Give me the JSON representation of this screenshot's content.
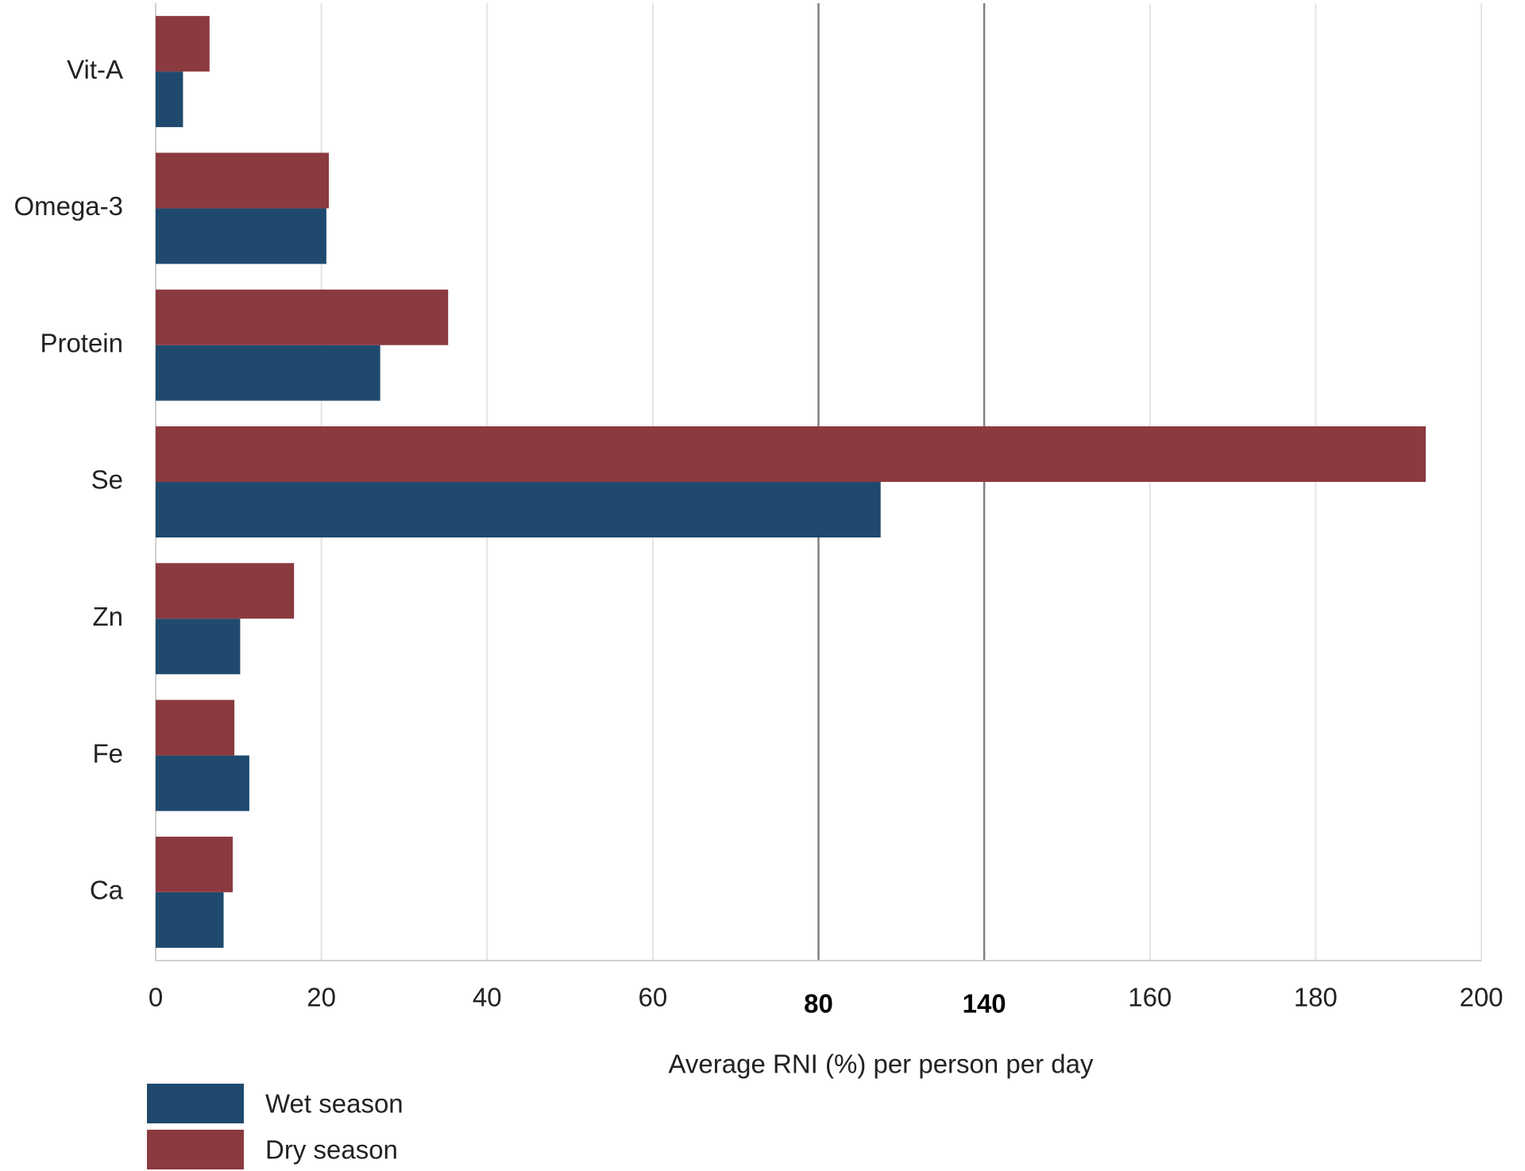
{
  "chart_data": {
    "type": "hbar",
    "categories": [
      "Vit-A",
      "Omega-3",
      "Protein",
      "Se",
      "Zn",
      "Fe",
      "Ca"
    ],
    "series": [
      {
        "name": "Wet season",
        "color": "#1f4a6e",
        "values": [
          3.3,
          20.6,
          27.1,
          102.5,
          10.2,
          11.3,
          8.2
        ]
      },
      {
        "name": "Dry season",
        "color": "#8b3a3f",
        "values": [
          6.5,
          20.9,
          35.3,
          193.3,
          16.7,
          9.5,
          9.3
        ]
      }
    ],
    "xlabel": "Average RNI (%) per person per day",
    "xlim": [
      0,
      200
    ],
    "xticks": [
      0,
      20,
      40,
      60,
      80,
      140,
      160,
      180,
      200
    ],
    "reference_lines": [
      80,
      140
    ],
    "grid": true,
    "legend": "bottom-left"
  }
}
